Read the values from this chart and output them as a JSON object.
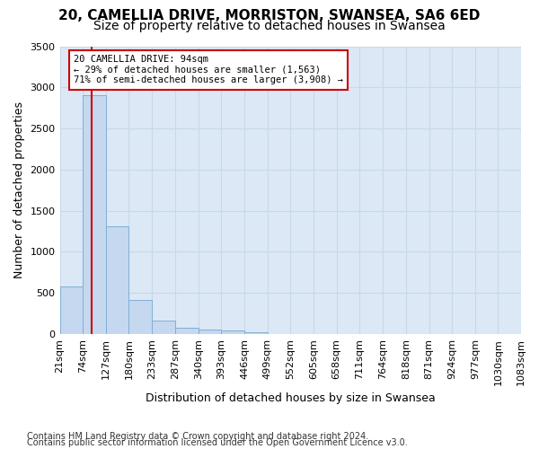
{
  "title1": "20, CAMELLIA DRIVE, MORRISTON, SWANSEA, SA6 6ED",
  "title2": "Size of property relative to detached houses in Swansea",
  "xlabel": "Distribution of detached houses by size in Swansea",
  "ylabel": "Number of detached properties",
  "footer1": "Contains HM Land Registry data © Crown copyright and database right 2024.",
  "footer2": "Contains public sector information licensed under the Open Government Licence v3.0.",
  "bin_labels": [
    "21sqm",
    "74sqm",
    "127sqm",
    "180sqm",
    "233sqm",
    "287sqm",
    "340sqm",
    "393sqm",
    "446sqm",
    "499sqm",
    "552sqm",
    "605sqm",
    "658sqm",
    "711sqm",
    "764sqm",
    "818sqm",
    "871sqm",
    "924sqm",
    "977sqm",
    "1030sqm",
    "1083sqm"
  ],
  "bin_edges": [
    21,
    74,
    127,
    180,
    233,
    287,
    340,
    393,
    446,
    499,
    552,
    605,
    658,
    711,
    764,
    818,
    871,
    924,
    977,
    1030,
    1083
  ],
  "bar_values": [
    580,
    2910,
    1305,
    415,
    165,
    80,
    55,
    40,
    25,
    0,
    0,
    0,
    0,
    0,
    0,
    0,
    0,
    0,
    0,
    0
  ],
  "bar_color": "#c5d8f0",
  "bar_edge_color": "#7fafd4",
  "property_size": 94,
  "vline_color": "#cc0000",
  "annotation_text": "20 CAMELLIA DRIVE: 94sqm\n← 29% of detached houses are smaller (1,563)\n71% of semi-detached houses are larger (3,908) →",
  "annotation_box_color": "#ffffff",
  "annotation_box_edge": "#cc0000",
  "ylim": [
    0,
    3500
  ],
  "yticks": [
    0,
    500,
    1000,
    1500,
    2000,
    2500,
    3000,
    3500
  ],
  "grid_color": "#c8d8e8",
  "bg_color": "#dce8f5",
  "title1_fontsize": 11,
  "title2_fontsize": 10,
  "xlabel_fontsize": 9,
  "ylabel_fontsize": 9,
  "tick_fontsize": 8,
  "footer_fontsize": 7
}
